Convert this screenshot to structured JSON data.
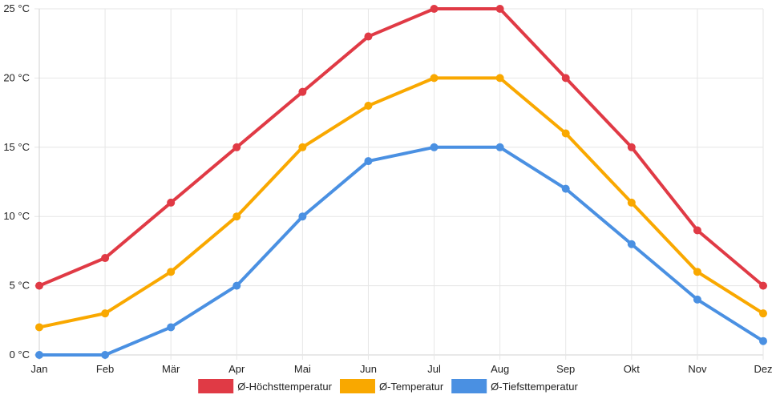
{
  "chart_data": {
    "type": "line",
    "categories": [
      "Jan",
      "Feb",
      "Mär",
      "Apr",
      "Mai",
      "Jun",
      "Jul",
      "Aug",
      "Sep",
      "Okt",
      "Nov",
      "Dez"
    ],
    "y_unit_suffix": " °C",
    "ylim": [
      0,
      25
    ],
    "y_ticks": [
      0,
      5,
      10,
      15,
      20,
      25
    ],
    "grid": true,
    "legend_position": "bottom",
    "series": [
      {
        "name": "Ø-Höchsttemperatur",
        "color": "#e03a45",
        "values": [
          5,
          7,
          11,
          15,
          19,
          23,
          25,
          25,
          20,
          15,
          9,
          5
        ]
      },
      {
        "name": "Ø-Temperatur",
        "color": "#f9a800",
        "values": [
          2,
          3,
          6,
          10,
          15,
          18,
          20,
          20,
          16,
          11,
          6,
          3
        ]
      },
      {
        "name": "Ø-Tiefsttemperatur",
        "color": "#4a90e2",
        "values": [
          0,
          0,
          2,
          5,
          10,
          14,
          15,
          15,
          12,
          8,
          4,
          1
        ]
      }
    ]
  }
}
